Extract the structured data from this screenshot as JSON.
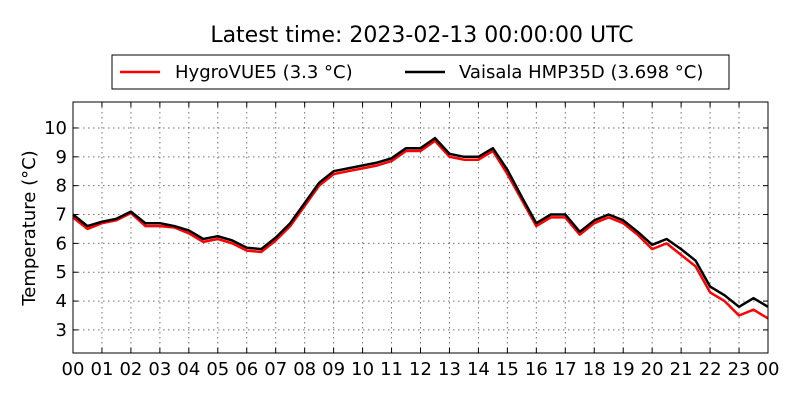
{
  "chart_data": {
    "type": "line",
    "title": "Latest time: 2023-02-13 00:00:00 UTC",
    "xlabel": "",
    "ylabel": "Temperature (°C)",
    "x_tick_labels": [
      "00",
      "01",
      "02",
      "03",
      "04",
      "05",
      "06",
      "07",
      "08",
      "09",
      "10",
      "11",
      "12",
      "13",
      "14",
      "15",
      "16",
      "17",
      "18",
      "19",
      "20",
      "21",
      "22",
      "23",
      "00"
    ],
    "xlim": [
      0,
      24
    ],
    "ylim": [
      2.2,
      10.9
    ],
    "y_ticks": [
      3,
      4,
      5,
      6,
      7,
      8,
      9,
      10
    ],
    "grid": true,
    "legend_position": "top",
    "x": [
      0,
      0.5,
      1,
      1.5,
      2,
      2.5,
      3,
      3.5,
      4,
      4.5,
      5,
      5.5,
      6,
      6.5,
      7,
      7.5,
      8,
      8.5,
      9,
      9.5,
      10,
      10.5,
      11,
      11.5,
      12,
      12.5,
      13,
      13.5,
      14,
      14.5,
      15,
      15.5,
      16,
      16.5,
      17,
      17.5,
      18,
      18.5,
      19,
      19.5,
      20,
      20.5,
      21,
      21.5,
      22,
      22.5,
      23,
      23.5,
      24
    ],
    "series": [
      {
        "name": "HygroVUE5 (3.3 °C)",
        "color": "#ff0000",
        "values": [
          6.9,
          6.5,
          6.7,
          6.8,
          7.05,
          6.6,
          6.6,
          6.55,
          6.35,
          6.05,
          6.15,
          6.0,
          5.75,
          5.7,
          6.1,
          6.6,
          7.3,
          8.0,
          8.4,
          8.5,
          8.6,
          8.7,
          8.85,
          9.2,
          9.2,
          9.55,
          9.0,
          8.9,
          8.9,
          9.2,
          8.4,
          7.5,
          6.6,
          6.9,
          6.9,
          6.3,
          6.7,
          6.9,
          6.7,
          6.3,
          5.8,
          6.0,
          5.6,
          5.2,
          4.3,
          4.0,
          3.5,
          3.7,
          3.4
        ]
      },
      {
        "name": "Vaisala HMP35D (3.698 °C)",
        "color": "#000000",
        "values": [
          7.0,
          6.6,
          6.75,
          6.85,
          7.1,
          6.7,
          6.7,
          6.6,
          6.45,
          6.15,
          6.25,
          6.1,
          5.85,
          5.8,
          6.2,
          6.7,
          7.4,
          8.1,
          8.5,
          8.6,
          8.7,
          8.8,
          8.95,
          9.3,
          9.3,
          9.65,
          9.1,
          9.0,
          9.0,
          9.3,
          8.55,
          7.6,
          6.7,
          7.0,
          7.0,
          6.4,
          6.8,
          7.0,
          6.8,
          6.4,
          5.95,
          6.15,
          5.8,
          5.4,
          4.5,
          4.2,
          3.8,
          4.1,
          3.8
        ]
      }
    ]
  }
}
